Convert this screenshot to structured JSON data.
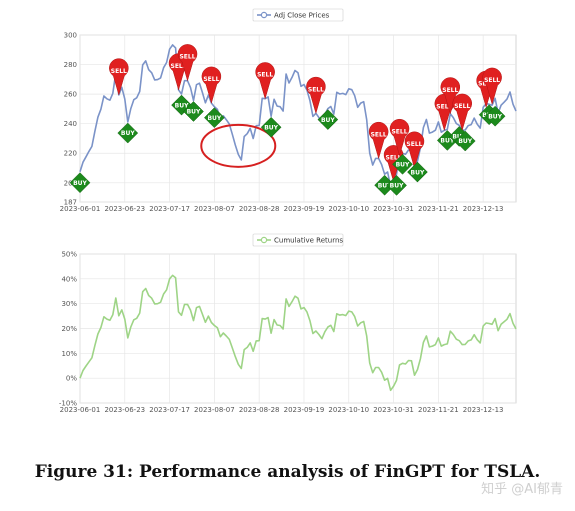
{
  "caption": "Figure 31: Performance analysis of FinGPT for TSLA.",
  "watermark": "知乎 @AI郁青",
  "colors": {
    "price_line": "#7b93c8",
    "returns_line": "#9ed486",
    "sell_pin": "#e02020",
    "buy_marker": "#1c8a1c",
    "highlight_circle": "#d62020",
    "grid": "#e6e6e6"
  },
  "chart_data": [
    {
      "type": "line",
      "legend": "Adj Close Prices",
      "legend_position": "top-center",
      "grid": true,
      "x_ticks": [
        "2023-06-01",
        "2023-06-23",
        "2023-07-17",
        "2023-08-07",
        "2023-08-28",
        "2023-09-19",
        "2023-10-10",
        "2023-10-31",
        "2023-11-21",
        "2023-12-13"
      ],
      "y_ticks": [
        "187",
        "200",
        "220",
        "240",
        "260",
        "280",
        "300"
      ],
      "ylim": [
        187,
        300
      ],
      "x": [
        "2023-06-01",
        "2023-06-02",
        "2023-06-05",
        "2023-06-06",
        "2023-06-07",
        "2023-06-08",
        "2023-06-09",
        "2023-06-12",
        "2023-06-13",
        "2023-06-14",
        "2023-06-15",
        "2023-06-16",
        "2023-06-20",
        "2023-06-21",
        "2023-06-22",
        "2023-06-23",
        "2023-06-26",
        "2023-06-27",
        "2023-06-28",
        "2023-06-29",
        "2023-06-30",
        "2023-07-03",
        "2023-07-05",
        "2023-07-06",
        "2023-07-07",
        "2023-07-10",
        "2023-07-11",
        "2023-07-12",
        "2023-07-13",
        "2023-07-14",
        "2023-07-17",
        "2023-07-18",
        "2023-07-19",
        "2023-07-20",
        "2023-07-21",
        "2023-07-24",
        "2023-07-25",
        "2023-07-26",
        "2023-07-27",
        "2023-07-28",
        "2023-07-31",
        "2023-08-01",
        "2023-08-02",
        "2023-08-03",
        "2023-08-04",
        "2023-08-07",
        "2023-08-08",
        "2023-08-09",
        "2023-08-10",
        "2023-08-11",
        "2023-08-14",
        "2023-08-15",
        "2023-08-16",
        "2023-08-17",
        "2023-08-18",
        "2023-08-21",
        "2023-08-22",
        "2023-08-23",
        "2023-08-24",
        "2023-08-25",
        "2023-08-28",
        "2023-08-29",
        "2023-08-30",
        "2023-08-31",
        "2023-09-01",
        "2023-09-05",
        "2023-09-06",
        "2023-09-07",
        "2023-09-08",
        "2023-09-11",
        "2023-09-12",
        "2023-09-13",
        "2023-09-14",
        "2023-09-15",
        "2023-09-18",
        "2023-09-19",
        "2023-09-20",
        "2023-09-21",
        "2023-09-22",
        "2023-09-25",
        "2023-09-26",
        "2023-09-27",
        "2023-09-28",
        "2023-09-29",
        "2023-10-02",
        "2023-10-03",
        "2023-10-04",
        "2023-10-05",
        "2023-10-06",
        "2023-10-09",
        "2023-10-10",
        "2023-10-11",
        "2023-10-12",
        "2023-10-13",
        "2023-10-16",
        "2023-10-17",
        "2023-10-18",
        "2023-10-19",
        "2023-10-20",
        "2023-10-23",
        "2023-10-24",
        "2023-10-25",
        "2023-10-26",
        "2023-10-27",
        "2023-10-30",
        "2023-10-31",
        "2023-11-01",
        "2023-11-02",
        "2023-11-03",
        "2023-11-06",
        "2023-11-07",
        "2023-11-08",
        "2023-11-09",
        "2023-11-10",
        "2023-11-13",
        "2023-11-14",
        "2023-11-15",
        "2023-11-16",
        "2023-11-17",
        "2023-11-20",
        "2023-11-21",
        "2023-11-22",
        "2023-11-24",
        "2023-11-27",
        "2023-11-28",
        "2023-11-29",
        "2023-11-30",
        "2023-12-01",
        "2023-12-04",
        "2023-12-05",
        "2023-12-06",
        "2023-12-07",
        "2023-12-08",
        "2023-12-11",
        "2023-12-12",
        "2023-12-13",
        "2023-12-14",
        "2023-12-15",
        "2023-12-18",
        "2023-12-19",
        "2023-12-20",
        "2023-12-21",
        "2023-12-22",
        "2023-12-26",
        "2023-12-27",
        "2023-12-28",
        "2023-12-29"
      ],
      "values": [
        207.5,
        213.9,
        217.6,
        221.3,
        224.6,
        234.9,
        244.4,
        249.8,
        258.7,
        256.8,
        255.9,
        260.5,
        274.5,
        259.5,
        264.6,
        256.6,
        241.1,
        250.2,
        256.2,
        257.5,
        261.8,
        279.8,
        282.5,
        276.5,
        274.4,
        269.6,
        269.8,
        271.0,
        277.9,
        281.4,
        290.4,
        293.3,
        291.3,
        262.9,
        260.0,
        269.1,
        269.1,
        264.4,
        255.7,
        266.4,
        267.4,
        261.1,
        254.1,
        259.3,
        253.9,
        251.5,
        249.7,
        242.2,
        245.3,
        242.7,
        239.8,
        232.9,
        225.6,
        219.2,
        215.5,
        231.3,
        233.2,
        236.9,
        230.0,
        238.6,
        238.8,
        257.2,
        256.9,
        258.1,
        245.0,
        256.5,
        251.9,
        251.5,
        248.5,
        273.6,
        267.5,
        271.3,
        276.0,
        274.4,
        265.3,
        266.5,
        262.6,
        255.7,
        244.9,
        246.99,
        244.1,
        240.5,
        246.4,
        250.2,
        251.6,
        246.5,
        261.2,
        260.1,
        260.5,
        259.7,
        263.6,
        262.99,
        258.9,
        251.1,
        253.9,
        254.9,
        242.7,
        220.1,
        212.0,
        216.5,
        216.5,
        212.4,
        205.8,
        207.3,
        197.4,
        200.8,
        205.7,
        218.5,
        219.96,
        219.3,
        222.2,
        222.1,
        209.98,
        214.7,
        223.7,
        237.4,
        242.8,
        233.6,
        234.3,
        235.6,
        241.2,
        234.2,
        235.5,
        236.1,
        246.7,
        244.1,
        240.1,
        238.8,
        235.6,
        235.7,
        238.7,
        239.4,
        243.8,
        239.7,
        237.0,
        251.1,
        253.5,
        253.2,
        252.5,
        257.2,
        247.1,
        252.5,
        254.5,
        256.6,
        261.4,
        253.2,
        248.5
      ],
      "signals": [
        {
          "label": "BUY",
          "date": "2023-06-01",
          "anchor": 207.5
        },
        {
          "label": "SELL",
          "date": "2023-06-21",
          "anchor": 259.5
        },
        {
          "label": "BUY",
          "date": "2023-06-26",
          "anchor": 241.1
        },
        {
          "label": "SELL",
          "date": "2023-07-20",
          "anchor": 262.9
        },
        {
          "label": "BUY",
          "date": "2023-07-21",
          "anchor": 260.0
        },
        {
          "label": "SELL",
          "date": "2023-07-25",
          "anchor": 269.1
        },
        {
          "label": "BUY",
          "date": "2023-07-27",
          "anchor": 255.7
        },
        {
          "label": "SELL",
          "date": "2023-08-04",
          "anchor": 253.9
        },
        {
          "label": "BUY",
          "date": "2023-08-07",
          "anchor": 251.5
        },
        {
          "label": "SELL",
          "date": "2023-08-30",
          "anchor": 256.9
        },
        {
          "label": "BUY",
          "date": "2023-09-01",
          "anchor": 245.0
        },
        {
          "label": "SELL",
          "date": "2023-09-25",
          "anchor": 246.99
        },
        {
          "label": "BUY",
          "date": "2023-09-29",
          "anchor": 250.2
        },
        {
          "label": "SELL",
          "date": "2023-10-24",
          "anchor": 216.5
        },
        {
          "label": "BUY",
          "date": "2023-10-26",
          "anchor": 205.8
        },
        {
          "label": "SELL",
          "date": "2023-10-31",
          "anchor": 200.8
        },
        {
          "label": "BUY",
          "date": "2023-11-01",
          "anchor": 205.7
        },
        {
          "label": "SELL",
          "date": "2023-11-02",
          "anchor": 218.5
        },
        {
          "label": "BUY",
          "date": "2023-11-03",
          "anchor": 219.96
        },
        {
          "label": "SELL",
          "date": "2023-11-09",
          "anchor": 209.98
        },
        {
          "label": "BUY",
          "date": "2023-11-10",
          "anchor": 214.7
        },
        {
          "label": "SELL",
          "date": "2023-11-24",
          "anchor": 235.5
        },
        {
          "label": "BUY",
          "date": "2023-11-27",
          "anchor": 236.1
        },
        {
          "label": "SELL",
          "date": "2023-11-28",
          "anchor": 246.7
        },
        {
          "label": "BUY",
          "date": "2023-12-01",
          "anchor": 238.8
        },
        {
          "label": "SELL",
          "date": "2023-12-04",
          "anchor": 235.6
        },
        {
          "label": "BUY",
          "date": "2023-12-05",
          "anchor": 235.7
        },
        {
          "label": "SELL",
          "date": "2023-12-14",
          "anchor": 251.1
        },
        {
          "label": "BUY",
          "date": "2023-12-15",
          "anchor": 253.5
        },
        {
          "label": "SELL",
          "date": "2023-12-18",
          "anchor": 253.2
        },
        {
          "label": "BUY",
          "date": "2023-12-19",
          "anchor": 252.5
        }
      ],
      "highlight": {
        "date": "2023-08-17",
        "value": 225
      }
    },
    {
      "type": "line",
      "legend": "Cumulative Returns",
      "legend_position": "top-center",
      "grid": true,
      "x_ticks": [
        "2023-06-01",
        "2023-06-23",
        "2023-07-17",
        "2023-08-07",
        "2023-08-28",
        "2023-09-19",
        "2023-10-10",
        "2023-10-31",
        "2023-11-21",
        "2023-12-13"
      ],
      "y_ticks": [
        "-10%",
        "0%",
        "10%",
        "20%",
        "30%",
        "40%",
        "50%"
      ],
      "ylim": [
        -10,
        50
      ],
      "value_suffix": "%",
      "values": [
        0.0,
        3.1,
        4.9,
        6.6,
        8.2,
        13.2,
        17.8,
        20.4,
        24.7,
        23.8,
        23.3,
        25.5,
        32.3,
        25.1,
        27.5,
        23.7,
        16.2,
        20.6,
        23.5,
        24.1,
        26.2,
        34.8,
        36.1,
        33.3,
        32.2,
        29.9,
        30.0,
        30.6,
        33.9,
        35.6,
        40.0,
        41.4,
        40.4,
        26.7,
        25.3,
        29.7,
        29.7,
        27.4,
        23.2,
        28.4,
        28.9,
        25.8,
        22.5,
        25.0,
        22.4,
        21.2,
        20.3,
        16.7,
        18.2,
        17.0,
        15.6,
        12.2,
        8.7,
        5.6,
        3.9,
        11.5,
        12.4,
        14.2,
        10.8,
        15.0,
        15.1,
        24.0,
        23.8,
        24.4,
        18.1,
        23.6,
        21.4,
        21.2,
        19.8,
        31.9,
        28.9,
        30.8,
        33.0,
        32.2,
        27.9,
        28.4,
        26.6,
        23.2,
        18.0,
        19.0,
        17.6,
        15.9,
        18.7,
        20.6,
        21.3,
        18.8,
        25.9,
        25.4,
        25.6,
        25.2,
        27.0,
        26.7,
        24.8,
        21.0,
        22.3,
        22.8,
        17.0,
        6.1,
        2.2,
        4.3,
        4.3,
        2.4,
        -0.8,
        -0.1,
        -4.9,
        -3.2,
        -0.9,
        5.3,
        6.0,
        5.7,
        7.1,
        7.0,
        1.2,
        3.5,
        7.8,
        14.4,
        17.0,
        12.6,
        12.9,
        13.5,
        16.2,
        12.9,
        13.5,
        13.8,
        18.9,
        17.6,
        15.7,
        15.1,
        13.5,
        13.6,
        15.0,
        15.4,
        17.5,
        15.5,
        14.2,
        21.0,
        22.2,
        22.0,
        21.7,
        24.0,
        19.1,
        21.7,
        22.7,
        23.7,
        26.0,
        22.1,
        19.8
      ]
    }
  ]
}
